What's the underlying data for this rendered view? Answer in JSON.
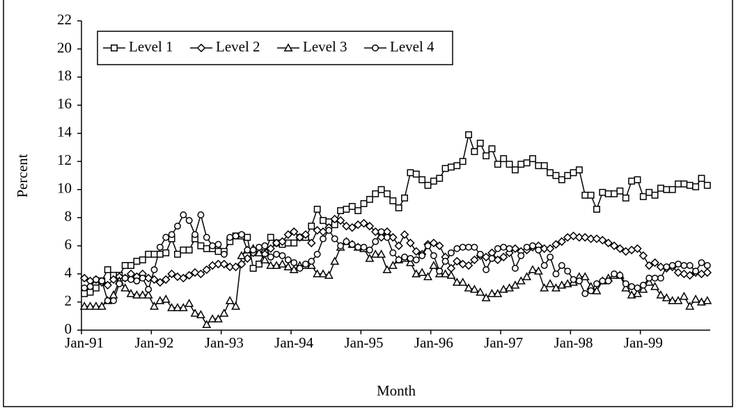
{
  "chart_data": {
    "type": "line",
    "x_label": "Month",
    "y_label": "Percent",
    "categories": [
      "Jan-91",
      null,
      null,
      null,
      null,
      null,
      null,
      null,
      null,
      null,
      null,
      null,
      "Jan-92",
      null,
      null,
      null,
      null,
      null,
      null,
      null,
      null,
      null,
      null,
      null,
      "Jan-93",
      null,
      null,
      null,
      null,
      null,
      null,
      null,
      null,
      null,
      null,
      null,
      "Jan-94",
      null,
      null,
      null,
      null,
      null,
      null,
      null,
      null,
      null,
      null,
      null,
      "Jan-95",
      null,
      null,
      null,
      null,
      null,
      null,
      null,
      null,
      null,
      null,
      null,
      "Jan-96",
      null,
      null,
      null,
      null,
      null,
      null,
      null,
      null,
      null,
      null,
      null,
      "Jan-97",
      null,
      null,
      null,
      null,
      null,
      null,
      null,
      null,
      null,
      null,
      null,
      "Jan-98",
      null,
      null,
      null,
      null,
      null,
      null,
      null,
      null,
      null,
      null,
      null,
      "Jan-99",
      null,
      null,
      null,
      null,
      null,
      null,
      null,
      null,
      null,
      null,
      null
    ],
    "ylim": [
      0,
      22
    ],
    "yticks": [
      0,
      2,
      4,
      6,
      8,
      10,
      12,
      14,
      16,
      18,
      20,
      22
    ],
    "legend": "upper left",
    "series": [
      {
        "name": "Level 1",
        "color": "#000000",
        "marker": "square",
        "values": [
          2.6,
          2.7,
          3.0,
          3.5,
          4.3,
          3.9,
          3.9,
          4.6,
          4.6,
          4.9,
          5.0,
          5.4,
          5.4,
          5.4,
          5.5,
          6.5,
          5.4,
          5.7,
          5.7,
          6.5,
          6.0,
          5.8,
          5.8,
          5.6,
          5.6,
          6.3,
          6.7,
          6.7,
          6.6,
          4.4,
          4.7,
          5.5,
          6.6,
          6.2,
          6.1,
          6.2,
          6.2,
          6.6,
          6.6,
          7.4,
          8.6,
          7.8,
          7.7,
          7.5,
          8.5,
          8.6,
          8.8,
          8.5,
          9.0,
          9.3,
          9.7,
          10.0,
          9.7,
          9.2,
          8.7,
          9.4,
          11.2,
          11.1,
          10.7,
          10.3,
          10.6,
          10.8,
          11.5,
          11.6,
          11.7,
          12.0,
          13.9,
          12.7,
          13.3,
          12.4,
          12.9,
          11.8,
          12.2,
          11.8,
          11.4,
          11.8,
          11.9,
          12.2,
          11.7,
          11.7,
          11.2,
          11.0,
          10.7,
          11.0,
          11.2,
          11.4,
          9.6,
          9.6,
          8.6,
          9.8,
          9.7,
          9.7,
          9.9,
          9.4,
          10.6,
          10.7,
          9.5,
          9.8,
          9.6,
          10.1,
          10.0,
          10.0,
          10.4,
          10.4,
          10.3,
          10.2,
          10.8,
          10.3
        ]
      },
      {
        "name": "Level 2",
        "color": "#000000",
        "marker": "diamond",
        "values": [
          3.7,
          3.5,
          3.6,
          3.4,
          3.2,
          3.6,
          3.8,
          3.7,
          4.0,
          3.8,
          4.0,
          3.7,
          3.6,
          3.4,
          3.6,
          4.0,
          3.8,
          3.7,
          3.9,
          4.1,
          4.0,
          4.3,
          4.6,
          4.7,
          4.7,
          4.5,
          4.5,
          4.7,
          5.1,
          5.5,
          5.7,
          5.4,
          5.8,
          6.2,
          6.3,
          6.8,
          7.0,
          6.6,
          6.8,
          6.2,
          7.1,
          7.0,
          7.3,
          7.9,
          7.8,
          7.4,
          7.3,
          7.5,
          7.6,
          7.4,
          7.0,
          6.6,
          7.0,
          6.6,
          6.0,
          6.8,
          6.2,
          5.6,
          5.4,
          6.1,
          6.2,
          6.0,
          5.2,
          4.4,
          4.9,
          4.7,
          4.6,
          5.0,
          5.3,
          5.2,
          5.5,
          5.0,
          5.2,
          5.5,
          5.8,
          5.6,
          5.7,
          5.9,
          6.0,
          5.8,
          5.8,
          6.1,
          6.3,
          6.6,
          6.7,
          6.6,
          6.6,
          6.5,
          6.5,
          6.4,
          6.2,
          6.0,
          5.8,
          5.6,
          5.7,
          5.8,
          5.3,
          4.6,
          4.8,
          4.5,
          4.4,
          4.5,
          4.1,
          4.0,
          3.9,
          4.1,
          4.0,
          4.1
        ]
      },
      {
        "name": "Level 3",
        "color": "#000000",
        "marker": "triangle",
        "values": [
          1.7,
          1.7,
          1.7,
          1.7,
          2.1,
          2.5,
          3.5,
          3.0,
          2.6,
          2.5,
          2.5,
          2.5,
          1.7,
          2.1,
          2.2,
          1.6,
          1.6,
          1.6,
          1.9,
          1.2,
          1.1,
          0.4,
          0.8,
          0.8,
          1.2,
          2.1,
          1.7,
          5.3,
          5.7,
          5.8,
          5.5,
          5.0,
          4.6,
          4.6,
          4.7,
          4.5,
          4.3,
          4.6,
          4.6,
          4.6,
          4.0,
          4.0,
          3.9,
          4.9,
          5.9,
          6.3,
          6.1,
          5.9,
          5.8,
          5.1,
          5.4,
          5.4,
          4.3,
          4.6,
          5.0,
          5.1,
          4.8,
          4.0,
          4.1,
          3.8,
          4.6,
          4.0,
          4.0,
          3.9,
          3.4,
          3.4,
          3.0,
          2.9,
          2.7,
          2.3,
          2.6,
          2.6,
          2.9,
          3.0,
          3.2,
          3.5,
          3.8,
          4.3,
          4.2,
          3.0,
          3.3,
          3.0,
          3.2,
          3.3,
          3.4,
          3.8,
          3.8,
          3.1,
          2.8,
          3.5,
          3.7,
          3.9,
          3.9,
          3.0,
          2.5,
          2.6,
          2.9,
          3.4,
          3.1,
          2.5,
          2.3,
          2.1,
          2.1,
          2.4,
          1.7,
          2.2,
          2.0,
          2.1
        ]
      },
      {
        "name": "Level 4",
        "color": "#000000",
        "marker": "circle",
        "values": [
          3.0,
          3.1,
          3.6,
          3.5,
          2.1,
          2.1,
          3.3,
          3.7,
          3.6,
          3.5,
          3.7,
          2.9,
          4.3,
          5.9,
          6.6,
          6.8,
          7.4,
          8.2,
          7.8,
          6.8,
          8.2,
          6.6,
          6.0,
          6.1,
          5.4,
          6.6,
          6.7,
          6.8,
          5.7,
          5.7,
          5.9,
          6.0,
          5.2,
          5.4,
          5.3,
          5.0,
          4.8,
          4.4,
          4.7,
          4.9,
          5.4,
          6.5,
          7.1,
          6.5,
          6.0,
          6.3,
          6.1,
          5.9,
          5.9,
          5.7,
          6.3,
          7.0,
          6.6,
          5.5,
          5.0,
          5.2,
          5.1,
          5.0,
          5.3,
          6.0,
          5.3,
          4.2,
          4.9,
          5.5,
          5.8,
          5.9,
          5.9,
          5.9,
          5.4,
          4.3,
          5.1,
          5.8,
          5.9,
          5.8,
          4.4,
          5.3,
          5.9,
          6.0,
          5.7,
          4.6,
          5.2,
          4.0,
          4.6,
          4.2,
          3.6,
          3.5,
          2.6,
          2.8,
          3.3,
          3.5,
          3.5,
          4.0,
          3.9,
          3.3,
          3.1,
          3.0,
          3.2,
          3.7,
          3.7,
          3.7,
          4.5,
          4.6,
          4.7,
          4.6,
          4.6,
          4.2,
          4.8,
          4.6
        ]
      }
    ]
  }
}
